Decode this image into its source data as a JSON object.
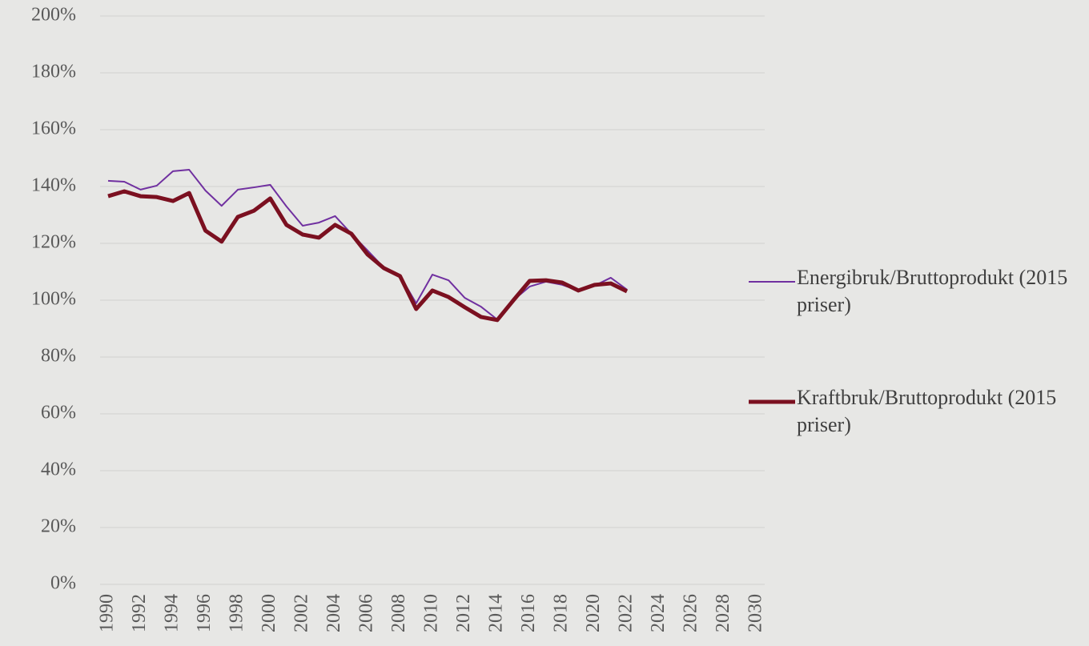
{
  "chart_data": {
    "type": "line",
    "x": [
      1990,
      1991,
      1992,
      1993,
      1994,
      1995,
      1996,
      1997,
      1998,
      1999,
      2000,
      2001,
      2002,
      2003,
      2004,
      2005,
      2006,
      2007,
      2008,
      2009,
      2010,
      2011,
      2012,
      2013,
      2014,
      2015,
      2016,
      2017,
      2018,
      2019,
      2020,
      2021,
      2022
    ],
    "series": [
      {
        "name": "Energibruk/Bruttoprodukt (2015 priser)",
        "color": "#7030a0",
        "width": 2,
        "values": [
          142.0,
          141.7,
          138.9,
          140.3,
          145.4,
          145.9,
          138.6,
          133.2,
          138.9,
          139.7,
          140.6,
          133.0,
          126.2,
          127.3,
          129.6,
          123.4,
          117.5,
          111.5,
          108.7,
          98.9,
          109.0,
          107.0,
          100.8,
          97.7,
          93.2,
          100.0,
          104.8,
          106.5,
          105.4,
          103.4,
          105.1,
          107.9,
          103.7
        ]
      },
      {
        "name": "Kraftbruk/Bruttoprodukt (2015 priser)",
        "color": "#7b1020",
        "width": 5,
        "values": [
          136.6,
          138.3,
          136.6,
          136.3,
          134.9,
          137.7,
          124.5,
          120.6,
          129.3,
          131.5,
          135.8,
          126.5,
          123.1,
          122.0,
          126.5,
          123.4,
          116.1,
          111.3,
          108.5,
          96.9,
          103.4,
          101.1,
          97.5,
          94.1,
          93.0,
          100.0,
          106.8,
          107.0,
          106.2,
          103.4,
          105.4,
          105.9,
          103.1
        ]
      }
    ],
    "xlim": [
      1990,
      2030
    ],
    "xticks": [
      1990,
      1992,
      1994,
      1996,
      1998,
      2000,
      2002,
      2004,
      2006,
      2008,
      2010,
      2012,
      2014,
      2016,
      2018,
      2020,
      2022,
      2024,
      2026,
      2028,
      2030
    ],
    "ylim": [
      0,
      200
    ],
    "yticks": [
      {
        "value": 0,
        "label": "0%"
      },
      {
        "value": 20,
        "label": "20%"
      },
      {
        "value": 40,
        "label": "40%"
      },
      {
        "value": 60,
        "label": "60%"
      },
      {
        "value": 80,
        "label": "80%"
      },
      {
        "value": 100,
        "label": "100%"
      },
      {
        "value": 120,
        "label": "120%"
      },
      {
        "value": 140,
        "label": "140%"
      },
      {
        "value": 160,
        "label": "160%"
      },
      {
        "value": 180,
        "label": "180%"
      },
      {
        "value": 200,
        "label": "200%"
      }
    ],
    "grid": true,
    "legend": "right"
  }
}
